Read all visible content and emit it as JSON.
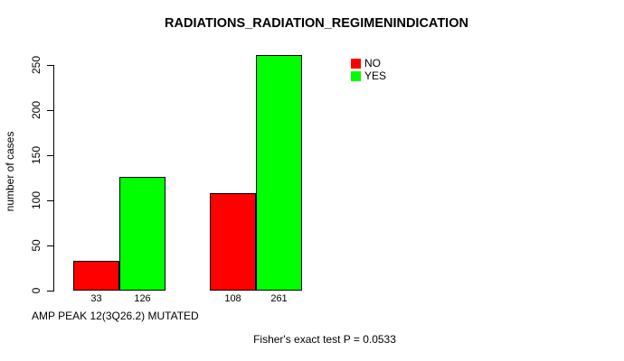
{
  "chart_data": {
    "type": "bar",
    "title": "RADIATIONS_RADIATION_REGIMENINDICATION",
    "ylabel": "number of cases",
    "xlabel": "AMP PEAK 12(3Q26.2) MUTATED",
    "annotation": "Fisher's exact test P = 0.0533",
    "ylim": [
      0,
      250
    ],
    "yticks": [
      0,
      50,
      100,
      150,
      200,
      250
    ],
    "series": [
      {
        "name": "NO",
        "color": "#ff0000",
        "values": [
          33,
          108
        ]
      },
      {
        "name": "YES",
        "color": "#00ff00",
        "values": [
          126,
          261
        ]
      }
    ],
    "bar_value_labels": [
      "33",
      "126",
      "108",
      "261"
    ],
    "legend": {
      "position": "top-right",
      "entries": [
        "NO",
        "YES"
      ]
    },
    "grid": false,
    "background": "#ffffff"
  }
}
